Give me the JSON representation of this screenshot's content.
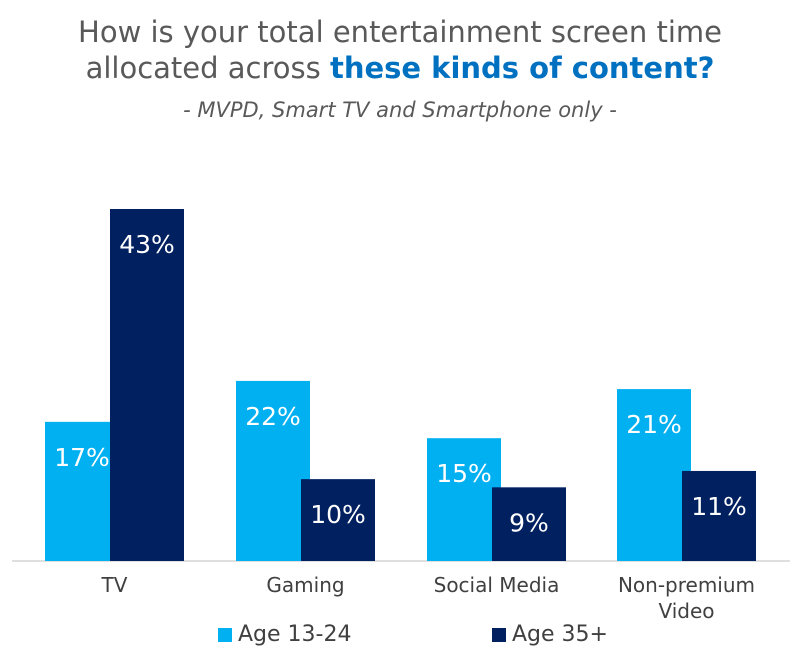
{
  "title_line1": "How is your total entertainment screen time",
  "title_line2_plain": "allocated across ",
  "title_line2_highlight": "these kinds of content?",
  "subtitle": "- MVPD, Smart TV and Smartphone only -",
  "colors": {
    "age_13_24": "#00B0F0",
    "age_35_plus": "#002060",
    "title": "#595959",
    "highlight": "#0070C0"
  },
  "chart_data": {
    "type": "bar",
    "categories": [
      "TV",
      "Gaming",
      "Social Media",
      "Non-premium Video"
    ],
    "category_lines": [
      [
        "TV"
      ],
      [
        "Gaming"
      ],
      [
        "Social Media"
      ],
      [
        "Non-premium",
        "Video"
      ]
    ],
    "series": [
      {
        "name": "Age 13-24",
        "values": [
          17,
          22,
          15,
          21
        ],
        "labels": [
          "17%",
          "22%",
          "15%",
          "21%"
        ]
      },
      {
        "name": "Age 35+",
        "values": [
          43,
          10,
          9,
          11
        ],
        "labels": [
          "43%",
          "10%",
          "9%",
          "11%"
        ]
      }
    ],
    "ylim": [
      0,
      45
    ],
    "grid": false,
    "legend_placement": "bottom"
  }
}
